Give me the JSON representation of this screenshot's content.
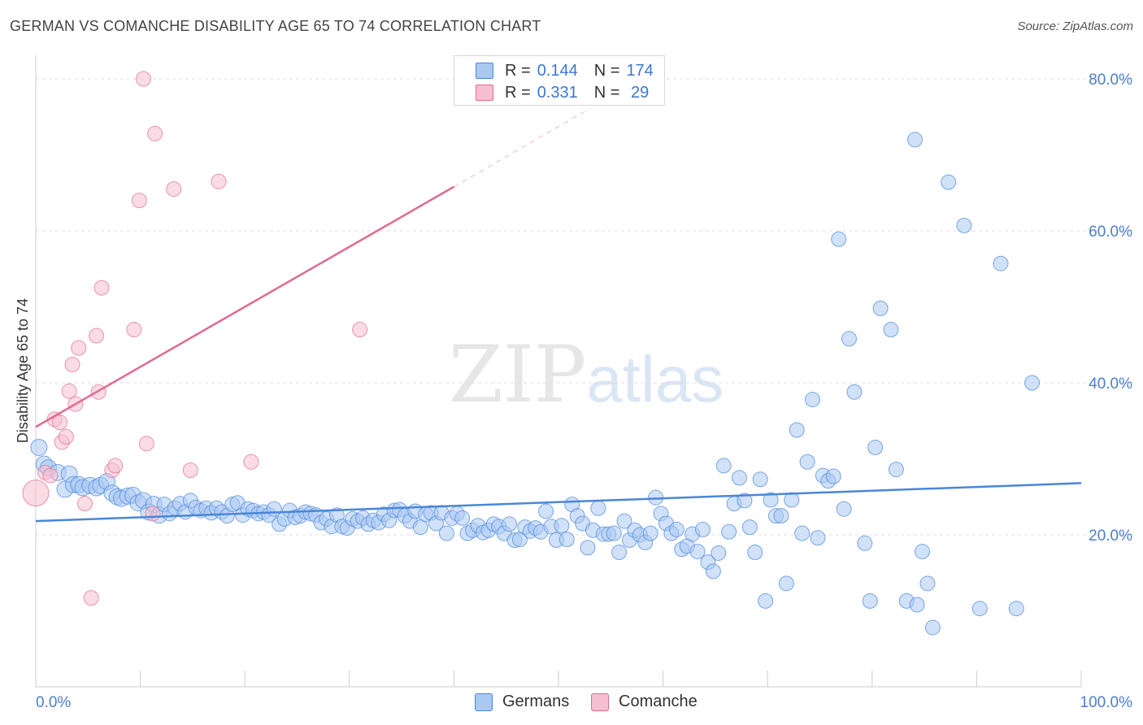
{
  "title": "GERMAN VS COMANCHE DISABILITY AGE 65 TO 74 CORRELATION CHART",
  "source": "Source: ZipAtlas.com",
  "watermark": {
    "zip": "ZIP",
    "atlas": "atlas"
  },
  "legend": {
    "rows": [
      {
        "r_label": "R =",
        "r_value": "0.144",
        "n_label": "N =",
        "n_value": "174",
        "color": "#a9c8f2"
      },
      {
        "r_label": "R =",
        "r_value": "0.331",
        "n_label": "N =",
        "n_value": " 29",
        "color": "#f7bfcf"
      }
    ]
  },
  "bottom_legend": [
    {
      "label": "Germans",
      "color": "#a9c8f2"
    },
    {
      "label": "Comanche",
      "color": "#f7bfcf"
    }
  ],
  "chart_data": {
    "type": "scatter",
    "title": "GERMAN VS COMANCHE DISABILITY AGE 65 TO 74 CORRELATION CHART",
    "xlabel": "",
    "ylabel": "Disability Age 65 to 74",
    "xlim": [
      0,
      100
    ],
    "ylim": [
      0,
      80
    ],
    "x_tick_labels": [
      "0.0%",
      "100.0%"
    ],
    "y_ticks": [
      20,
      40,
      60,
      80
    ],
    "y_tick_labels": [
      "20.0%",
      "40.0%",
      "60.0%",
      "80.0%"
    ],
    "grid": true,
    "legend_position": "top-center",
    "series": [
      {
        "name": "Germans",
        "color": "#4a86d8",
        "fill": "#a9c8f2",
        "trend": {
          "x0": 0,
          "y0": 21.8,
          "x1": 100,
          "y1": 26.8
        },
        "points": [
          [
            0.3,
            31.5
          ],
          [
            0.8,
            29.3
          ],
          [
            1.2,
            28.8
          ],
          [
            2.1,
            28.2
          ],
          [
            2.8,
            26.0
          ],
          [
            3.2,
            28.0
          ],
          [
            3.6,
            26.6
          ],
          [
            4.1,
            26.6
          ],
          [
            4.5,
            26.2
          ],
          [
            5.2,
            26.5
          ],
          [
            5.8,
            26.2
          ],
          [
            6.2,
            26.5
          ],
          [
            6.8,
            27.0
          ],
          [
            7.3,
            25.5
          ],
          [
            7.8,
            25.0
          ],
          [
            8.2,
            24.8
          ],
          [
            8.8,
            25.1
          ],
          [
            9.3,
            25.2
          ],
          [
            9.8,
            24.2
          ],
          [
            10.3,
            24.5
          ],
          [
            10.8,
            23.0
          ],
          [
            11.3,
            24.0
          ],
          [
            11.8,
            22.6
          ],
          [
            12.3,
            24.0
          ],
          [
            12.8,
            22.8
          ],
          [
            13.3,
            23.5
          ],
          [
            13.8,
            24.1
          ],
          [
            14.3,
            23.0
          ],
          [
            14.8,
            24.5
          ],
          [
            15.3,
            23.6
          ],
          [
            15.8,
            23.2
          ],
          [
            16.3,
            23.5
          ],
          [
            16.8,
            22.9
          ],
          [
            17.3,
            23.5
          ],
          [
            17.8,
            23.0
          ],
          [
            18.3,
            22.5
          ],
          [
            18.8,
            24.0
          ],
          [
            19.3,
            24.2
          ],
          [
            19.8,
            22.6
          ],
          [
            20.3,
            23.4
          ],
          [
            20.8,
            23.2
          ],
          [
            21.3,
            22.8
          ],
          [
            21.8,
            23.0
          ],
          [
            22.3,
            22.6
          ],
          [
            22.8,
            23.4
          ],
          [
            23.3,
            21.4
          ],
          [
            23.8,
            22.1
          ],
          [
            24.3,
            23.2
          ],
          [
            24.8,
            22.3
          ],
          [
            25.3,
            22.5
          ],
          [
            25.8,
            23.0
          ],
          [
            26.3,
            22.8
          ],
          [
            26.8,
            22.6
          ],
          [
            27.3,
            21.6
          ],
          [
            27.8,
            22.1
          ],
          [
            28.3,
            21.1
          ],
          [
            28.8,
            22.6
          ],
          [
            29.3,
            21.1
          ],
          [
            29.8,
            20.9
          ],
          [
            30.3,
            22.1
          ],
          [
            30.8,
            21.8
          ],
          [
            31.3,
            22.2
          ],
          [
            31.8,
            21.4
          ],
          [
            32.3,
            21.9
          ],
          [
            32.8,
            21.6
          ],
          [
            33.3,
            22.7
          ],
          [
            33.8,
            21.9
          ],
          [
            34.3,
            23.2
          ],
          [
            34.8,
            23.3
          ],
          [
            35.3,
            22.5
          ],
          [
            35.8,
            21.8
          ],
          [
            36.3,
            23.1
          ],
          [
            36.8,
            21.0
          ],
          [
            37.3,
            22.7
          ],
          [
            37.8,
            22.9
          ],
          [
            38.3,
            21.5
          ],
          [
            38.8,
            22.9
          ],
          [
            39.3,
            20.2
          ],
          [
            39.8,
            22.2
          ],
          [
            40.3,
            22.8
          ],
          [
            40.8,
            22.2
          ],
          [
            41.3,
            20.2
          ],
          [
            41.8,
            20.6
          ],
          [
            42.3,
            21.2
          ],
          [
            42.8,
            20.3
          ],
          [
            43.3,
            20.6
          ],
          [
            43.8,
            21.4
          ],
          [
            44.3,
            21.1
          ],
          [
            44.8,
            20.2
          ],
          [
            45.3,
            21.4
          ],
          [
            45.8,
            19.3
          ],
          [
            46.3,
            19.4
          ],
          [
            46.8,
            21.0
          ],
          [
            47.3,
            20.5
          ],
          [
            47.8,
            20.9
          ],
          [
            48.3,
            20.4
          ],
          [
            48.8,
            23.1
          ],
          [
            49.3,
            21.1
          ],
          [
            49.8,
            19.3
          ],
          [
            50.3,
            21.2
          ],
          [
            50.8,
            19.4
          ],
          [
            51.3,
            24.0
          ],
          [
            51.8,
            22.5
          ],
          [
            52.3,
            21.5
          ],
          [
            52.8,
            18.3
          ],
          [
            53.3,
            20.6
          ],
          [
            53.8,
            23.5
          ],
          [
            54.3,
            20.1
          ],
          [
            54.8,
            20.1
          ],
          [
            55.3,
            20.2
          ],
          [
            55.8,
            17.7
          ],
          [
            56.3,
            21.8
          ],
          [
            56.8,
            19.3
          ],
          [
            57.3,
            20.6
          ],
          [
            57.8,
            20.0
          ],
          [
            58.3,
            19.0
          ],
          [
            58.8,
            20.2
          ],
          [
            59.3,
            24.9
          ],
          [
            59.8,
            22.8
          ],
          [
            60.3,
            21.5
          ],
          [
            60.8,
            20.2
          ],
          [
            61.3,
            20.7
          ],
          [
            61.8,
            18.1
          ],
          [
            62.3,
            18.5
          ],
          [
            62.8,
            20.1
          ],
          [
            63.3,
            17.8
          ],
          [
            63.8,
            20.7
          ],
          [
            64.3,
            16.4
          ],
          [
            64.8,
            15.2
          ],
          [
            65.3,
            17.6
          ],
          [
            65.8,
            29.1
          ],
          [
            66.3,
            20.4
          ],
          [
            66.8,
            24.1
          ],
          [
            67.3,
            27.5
          ],
          [
            67.8,
            24.5
          ],
          [
            68.3,
            21.0
          ],
          [
            68.8,
            17.7
          ],
          [
            69.3,
            27.3
          ],
          [
            69.8,
            11.3
          ],
          [
            70.3,
            24.6
          ],
          [
            70.8,
            22.5
          ],
          [
            71.3,
            22.5
          ],
          [
            71.8,
            13.6
          ],
          [
            72.3,
            24.6
          ],
          [
            72.8,
            33.8
          ],
          [
            73.3,
            20.2
          ],
          [
            73.8,
            29.6
          ],
          [
            74.3,
            37.8
          ],
          [
            74.8,
            19.6
          ],
          [
            75.3,
            27.8
          ],
          [
            75.8,
            27.1
          ],
          [
            76.3,
            27.7
          ],
          [
            76.8,
            58.9
          ],
          [
            77.3,
            23.4
          ],
          [
            77.8,
            45.8
          ],
          [
            78.3,
            38.8
          ],
          [
            79.3,
            18.9
          ],
          [
            79.8,
            11.3
          ],
          [
            80.3,
            31.5
          ],
          [
            80.8,
            49.8
          ],
          [
            81.8,
            47.0
          ],
          [
            82.3,
            28.6
          ],
          [
            83.3,
            11.3
          ],
          [
            84.1,
            72.0
          ],
          [
            84.3,
            10.8
          ],
          [
            84.8,
            17.8
          ],
          [
            85.3,
            13.6
          ],
          [
            85.8,
            7.8
          ],
          [
            87.3,
            66.4
          ],
          [
            88.8,
            60.7
          ],
          [
            90.3,
            10.3
          ],
          [
            92.3,
            55.7
          ],
          [
            93.8,
            10.3
          ],
          [
            95.3,
            40.0
          ]
        ]
      },
      {
        "name": "Comanche",
        "color": "#e06a92",
        "fill": "#f7bfcf",
        "trend": {
          "x0": 0,
          "y0": 34.2,
          "x1": 40,
          "y1": 65.8
        },
        "trend_dashed_to": {
          "x": 53,
          "y": 76.1
        },
        "points": [
          [
            0.0,
            25.5
          ],
          [
            0.9,
            28.2
          ],
          [
            1.4,
            27.8
          ],
          [
            1.8,
            35.2
          ],
          [
            2.3,
            34.8
          ],
          [
            2.5,
            32.2
          ],
          [
            2.9,
            32.9
          ],
          [
            3.2,
            38.9
          ],
          [
            3.5,
            42.4
          ],
          [
            3.8,
            37.2
          ],
          [
            4.1,
            44.6
          ],
          [
            4.7,
            24.1
          ],
          [
            5.3,
            11.7
          ],
          [
            5.8,
            46.2
          ],
          [
            6.0,
            38.8
          ],
          [
            6.3,
            52.5
          ],
          [
            7.3,
            28.5
          ],
          [
            7.6,
            29.1
          ],
          [
            9.4,
            47.0
          ],
          [
            9.9,
            64.0
          ],
          [
            10.3,
            80.0
          ],
          [
            10.6,
            32.0
          ],
          [
            11.2,
            22.8
          ],
          [
            11.4,
            72.8
          ],
          [
            13.2,
            65.5
          ],
          [
            14.8,
            28.5
          ],
          [
            17.5,
            66.5
          ],
          [
            20.6,
            29.6
          ],
          [
            31.0,
            47.0
          ]
        ]
      }
    ]
  }
}
